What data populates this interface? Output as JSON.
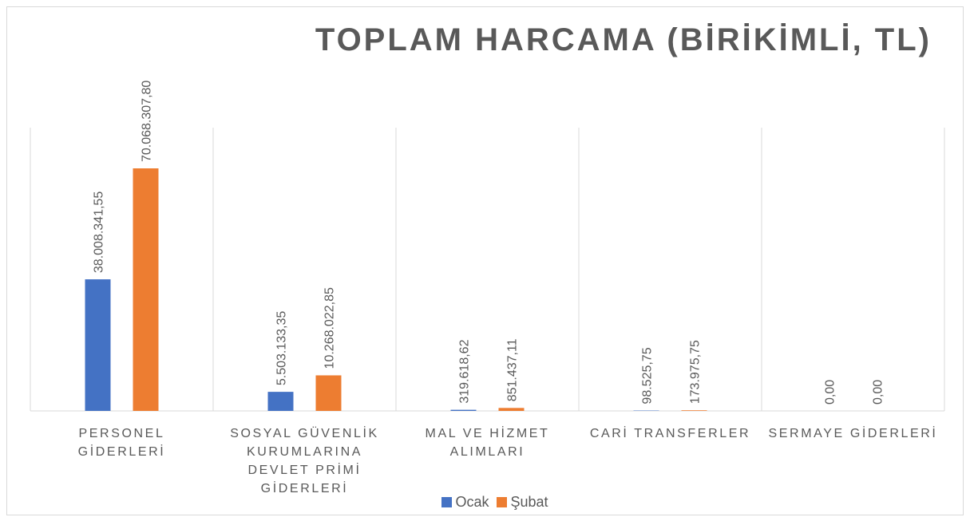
{
  "chart_data": {
    "type": "bar",
    "title": "TOPLAM HARCAMA (BİRİKİMLİ, TL)",
    "categories": [
      "PERSONEL GİDERLERİ",
      "SOSYAL GÜVENLİK KURUMLARINA DEVLET PRİMİ GİDERLERİ",
      "MAL VE HİZMET ALIMLARI",
      "CARİ TRANSFERLER",
      "SERMAYE GİDERLERİ"
    ],
    "series": [
      {
        "name": "Ocak",
        "color": "#4472c4",
        "values": [
          38008341.55,
          5503133.35,
          319618.62,
          98525.75,
          0
        ],
        "value_labels": [
          "38.008.341,55",
          "5.503.133,35",
          "319.618,62",
          "98.525,75",
          "0,00"
        ]
      },
      {
        "name": "Şubat",
        "color": "#ed7d31",
        "values": [
          70068307.8,
          10268022.85,
          851437.11,
          173975.75,
          0
        ],
        "value_labels": [
          "70.068.307,80",
          "10.268.022,85",
          "851.437,11",
          "173.975,75",
          "0,00"
        ]
      }
    ],
    "legend": "bottom"
  }
}
